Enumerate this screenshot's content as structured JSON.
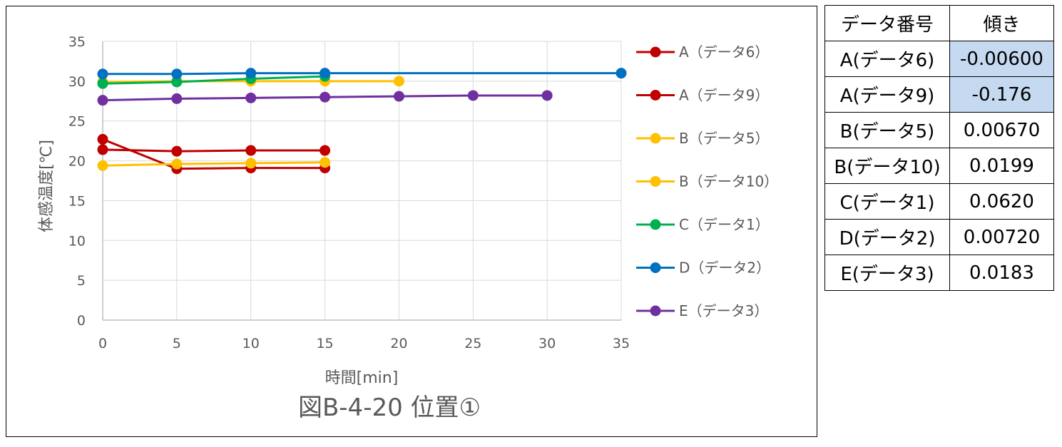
{
  "chart_data": {
    "type": "line",
    "title": "図B-4-20 位置①",
    "xlabel": "時間[min]",
    "ylabel": "体感温度[℃]",
    "xlim": [
      0,
      35
    ],
    "ylim": [
      0,
      35
    ],
    "xticks": [
      0,
      5,
      10,
      15,
      20,
      25,
      30,
      35
    ],
    "yticks": [
      0,
      5,
      10,
      15,
      20,
      25,
      30,
      35
    ],
    "grid": "horizontal",
    "legend_position": "right",
    "series": [
      {
        "name": "A（データ6）",
        "color": "#c00000",
        "x": [
          0,
          5,
          10,
          15
        ],
        "y": [
          21.4,
          21.2,
          21.3,
          21.3
        ]
      },
      {
        "name": "A（データ9）",
        "color": "#c00000",
        "x": [
          0,
          5,
          10,
          15
        ],
        "y": [
          22.7,
          19.0,
          19.1,
          19.1
        ]
      },
      {
        "name": "B（データ5）",
        "color": "#ffc000",
        "x": [
          0,
          5,
          10,
          15,
          20
        ],
        "y": [
          29.9,
          30.0,
          30.0,
          30.0,
          30.0
        ]
      },
      {
        "name": "B（データ10）",
        "color": "#ffc000",
        "x": [
          0,
          5,
          10,
          15
        ],
        "y": [
          19.4,
          19.6,
          19.7,
          19.8
        ]
      },
      {
        "name": "C（データ1）",
        "color": "#00b050",
        "x": [
          0,
          5,
          10,
          15
        ],
        "y": [
          29.7,
          29.9,
          30.3,
          30.6
        ]
      },
      {
        "name": "D（データ2）",
        "color": "#0070c0",
        "x": [
          0,
          5,
          10,
          15,
          35
        ],
        "y": [
          30.9,
          30.9,
          31.0,
          31.0,
          31.0
        ]
      },
      {
        "name": "E（データ3）",
        "color": "#7030a0",
        "x": [
          0,
          5,
          10,
          15,
          20,
          25,
          30
        ],
        "y": [
          27.6,
          27.8,
          27.9,
          28.0,
          28.1,
          28.2,
          28.2
        ]
      }
    ]
  },
  "table": {
    "headers": [
      "データ番号",
      "傾き"
    ],
    "rows": [
      {
        "label": "A(データ6)",
        "value": "-0.00600",
        "highlight": true
      },
      {
        "label": "A(データ9)",
        "value": "-0.176",
        "highlight": true
      },
      {
        "label": "B(データ5)",
        "value": "0.00670",
        "highlight": false
      },
      {
        "label": "B(データ10)",
        "value": "0.0199",
        "highlight": false
      },
      {
        "label": "C(データ1)",
        "value": "0.0620",
        "highlight": false
      },
      {
        "label": "D(データ2)",
        "value": "0.00720",
        "highlight": false
      },
      {
        "label": "E(データ3)",
        "value": "0.0183",
        "highlight": false
      }
    ],
    "highlight_color": "#c5d9f1"
  }
}
